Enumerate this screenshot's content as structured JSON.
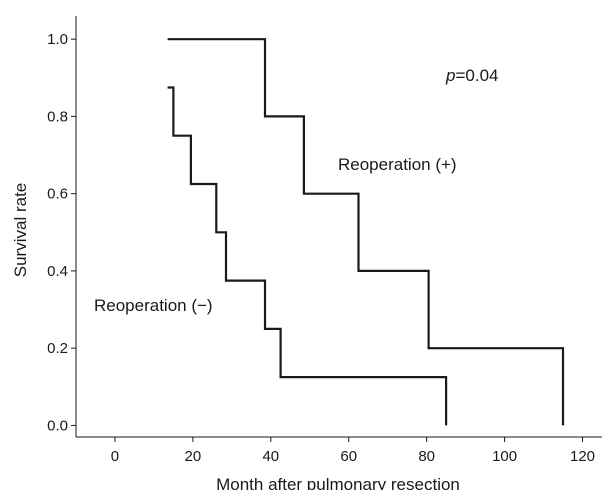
{
  "chart_data": {
    "type": "line",
    "step": true,
    "title": "",
    "xlabel": "Month after pulmonary resection",
    "ylabel": "Survival rate",
    "xlim": [
      -10,
      125
    ],
    "ylim": [
      -0.03,
      1.06
    ],
    "xticks": [
      0,
      20,
      40,
      60,
      80,
      100,
      120
    ],
    "xtick_labels": [
      "0",
      "20",
      "40",
      "60",
      "80",
      "100",
      "120"
    ],
    "yticks": [
      0.0,
      0.2,
      0.4,
      0.6,
      0.8,
      1.0
    ],
    "ytick_labels": [
      "0.0",
      "0.2",
      "0.4",
      "0.6",
      "0.8",
      "1.0"
    ],
    "grid": false,
    "line_color": "#1a1a1a",
    "series": [
      {
        "label": "Reoperation (+)",
        "x": [
          13.5,
          38.5,
          38.5,
          48.5,
          48.5,
          62.5,
          62.5,
          80.5,
          80.5,
          115,
          115
        ],
        "y": [
          1.0,
          1.0,
          0.8,
          0.8,
          0.6,
          0.6,
          0.4,
          0.4,
          0.2,
          0.2,
          0.0
        ]
      },
      {
        "label": "Reoperation (−)",
        "x": [
          13.5,
          15,
          15,
          19.5,
          19.5,
          26,
          26,
          28.5,
          28.5,
          38.5,
          38.5,
          42.5,
          42.5,
          85,
          85
        ],
        "y": [
          0.875,
          0.875,
          0.75,
          0.75,
          0.625,
          0.625,
          0.5,
          0.5,
          0.375,
          0.375,
          0.25,
          0.25,
          0.125,
          0.125,
          0.0
        ]
      }
    ],
    "annotations": {
      "p_symbol": "p",
      "p_rest": "=0.04",
      "reop_plus": "Reoperation (+)",
      "reop_minus": "Reoperation (−)"
    }
  }
}
